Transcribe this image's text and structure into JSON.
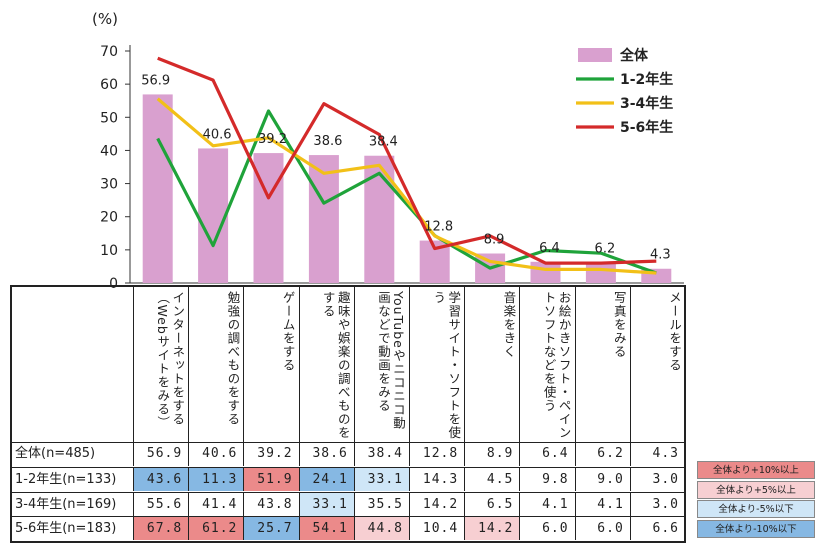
{
  "chart_data": {
    "type": "bar",
    "ylabel": "(%)",
    "ylim": [
      0,
      70
    ],
    "yticks": [
      0,
      10,
      20,
      30,
      40,
      50,
      60,
      70
    ],
    "categories": [
      "インターネットをする（Webサイトをみる）",
      "勉強の調べものをする",
      "ゲームをする",
      "趣味や娯楽の調べものをする",
      "YouTubeやニコニコ動画などで動画をみる",
      "学習サイト・ソフトを使う",
      "音楽をきく",
      "お絵かきソフト・ペイントソフトなどを使う",
      "写真をみる",
      "メールをする"
    ],
    "series": [
      {
        "name": "全体",
        "kind": "bar",
        "color": "#d9a0cf",
        "values": [
          56.9,
          40.6,
          39.2,
          38.6,
          38.4,
          12.8,
          8.9,
          6.4,
          6.2,
          4.3
        ]
      },
      {
        "name": "1-2年生",
        "kind": "line",
        "color": "#1fa33a",
        "values": [
          43.6,
          11.3,
          51.9,
          24.1,
          33.1,
          14.3,
          4.5,
          9.8,
          9.0,
          3.0
        ]
      },
      {
        "name": "3-4年生",
        "kind": "line",
        "color": "#f2c018",
        "values": [
          55.6,
          41.4,
          43.8,
          33.1,
          35.5,
          14.2,
          6.5,
          4.1,
          4.1,
          3.0
        ]
      },
      {
        "name": "5-6年生",
        "kind": "line",
        "color": "#d42a2a",
        "values": [
          67.8,
          61.2,
          25.7,
          54.1,
          44.8,
          10.4,
          14.2,
          6.0,
          6.0,
          6.6
        ]
      }
    ],
    "bar_labels": [
      "56.9",
      "40.6",
      "39.2",
      "38.6",
      "38.4",
      "12.8",
      "8.9",
      "6.4",
      "6.2",
      "4.3"
    ],
    "legend": "top-right"
  },
  "table": {
    "rows": [
      {
        "label": "全体(n=485)",
        "cells": [
          "56.9",
          "40.6",
          "39.2",
          "38.6",
          "38.4",
          "12.8",
          "8.9",
          "6.4",
          "6.2",
          "4.3"
        ],
        "flags": [
          "",
          "",
          "",
          "",
          "",
          "",
          "",
          "",
          "",
          ""
        ]
      },
      {
        "label": "1-2年生(n=133)",
        "cells": [
          "43.6",
          "11.3",
          "51.9",
          "24.1",
          "33.1",
          "14.3",
          "4.5",
          "9.8",
          "9.0",
          "3.0"
        ],
        "flags": [
          "d10",
          "d10",
          "u10",
          "d10",
          "d5",
          "",
          "",
          "",
          "",
          ""
        ]
      },
      {
        "label": "3-4年生(n=169)",
        "cells": [
          "55.6",
          "41.4",
          "43.8",
          "33.1",
          "35.5",
          "14.2",
          "6.5",
          "4.1",
          "4.1",
          "3.0"
        ],
        "flags": [
          "",
          "",
          "",
          "d5",
          "",
          "",
          "",
          "",
          "",
          ""
        ]
      },
      {
        "label": "5-6年生(n=183)",
        "cells": [
          "67.8",
          "61.2",
          "25.7",
          "54.1",
          "44.8",
          "10.4",
          "14.2",
          "6.0",
          "6.0",
          "6.6"
        ],
        "flags": [
          "u10",
          "u10",
          "d10",
          "u10",
          "u5",
          "",
          "u5",
          "",
          "",
          ""
        ]
      }
    ]
  },
  "flag_legend": [
    {
      "key": "u10",
      "label": "全体より+10%以上",
      "color": "#eb8a8a"
    },
    {
      "key": "u5",
      "label": "全体より+5%以上",
      "color": "#f7cfd2"
    },
    {
      "key": "d5",
      "label": "全体より-5%以下",
      "color": "#cfe6f7"
    },
    {
      "key": "d10",
      "label": "全体より-10%以下",
      "color": "#86b8e3"
    }
  ]
}
